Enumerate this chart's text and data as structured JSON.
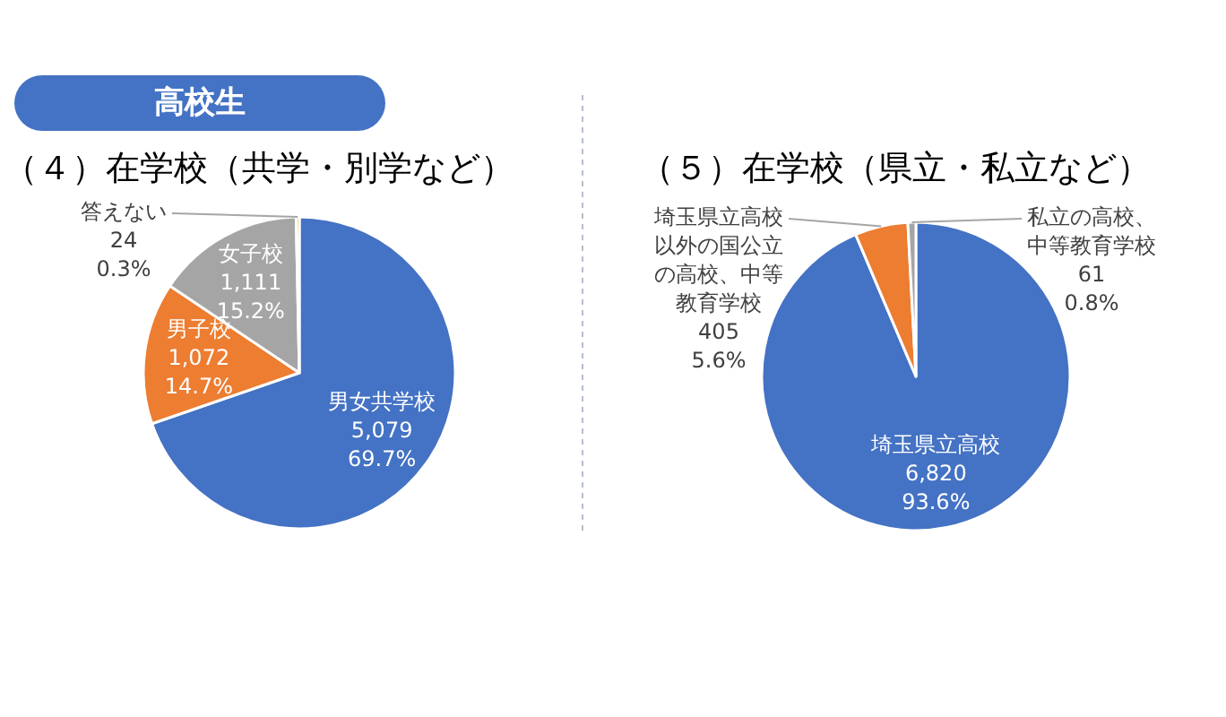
{
  "chart_data": [
    {
      "type": "pie",
      "title": "高校生",
      "subtitle": "（４）在学校（共学・別学など）",
      "categories": [
        "男女共学校",
        "男子校",
        "女子校",
        "答えない"
      ],
      "values": [
        5079,
        1072,
        1111,
        24
      ],
      "colors": [
        "#4472c4",
        "#ed7d31",
        "#a5a5a5",
        "#ffc000"
      ],
      "value_labels": [
        "5,079\n69.7%",
        "1,072\n14.7%",
        "1,111\n15.2%",
        "24\n0.3%"
      ]
    },
    {
      "type": "pie",
      "title": "（５）在学校（県立・私立など）",
      "categories": [
        "埼玉県立高校",
        "埼玉県立高校以外の国公立の高校、中等教育学校",
        "私立の高校、中等教育学校"
      ],
      "values": [
        6820,
        405,
        61
      ],
      "colors": [
        "#4472c4",
        "#ed7d31",
        "#a5a5a5"
      ],
      "value_labels": [
        "6,820\n93.6%",
        "405\n5.6%",
        "61\n0.8%"
      ]
    }
  ]
}
